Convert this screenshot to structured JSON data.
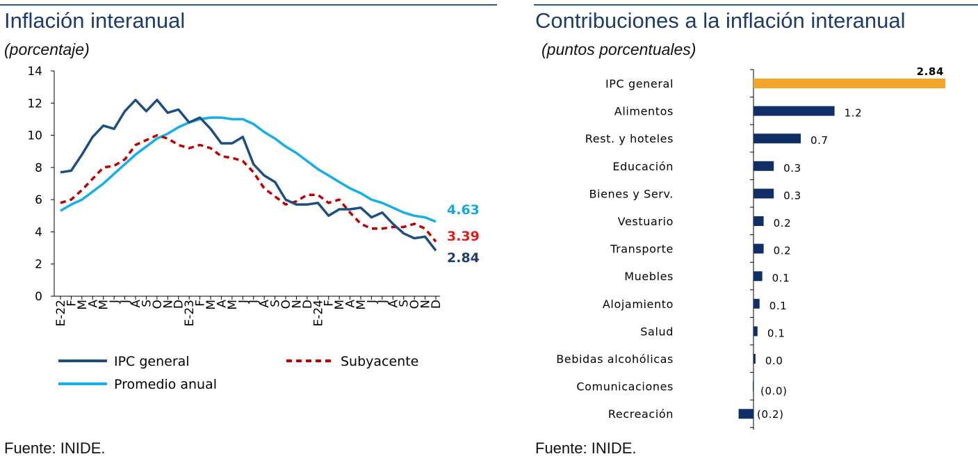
{
  "left": {
    "title": "Inflación interanual",
    "subtitle": "(porcentaje)",
    "source": "Fuente: INIDE."
  },
  "right": {
    "title": "Contribuciones a la inflación interanual",
    "subtitle": "(puntos porcentuales)",
    "source": "Fuente: INIDE."
  },
  "colors": {
    "ipc": "#1c4e80",
    "subyacente": "#c00000",
    "promedio": "#14aee8",
    "label_ipc": "#1f3f6e",
    "label_sub": "#e31b1b",
    "label_prom": "#12a9e0",
    "bar_highlight": "#f0a72a",
    "bar": "#0f2f66"
  },
  "chart_data": [
    {
      "type": "line",
      "title": "Inflación interanual",
      "subtitle": "(porcentaje)",
      "ylim": [
        0,
        14
      ],
      "yticks": [
        0,
        2,
        4,
        6,
        8,
        10,
        12,
        14
      ],
      "grid": false,
      "legend_position": "bottom",
      "x": [
        "E-22",
        "F",
        "M",
        "A",
        "M",
        "J",
        "J",
        "A",
        "S",
        "O",
        "N",
        "D",
        "E-23",
        "F",
        "M",
        "A",
        "M",
        "J",
        "J",
        "A",
        "S",
        "O",
        "N",
        "D",
        "E-24",
        "F",
        "M",
        "A",
        "M",
        "J",
        "J",
        "A",
        "S",
        "O",
        "N",
        "D"
      ],
      "series": [
        {
          "name": "IPC general",
          "style": "solid",
          "values": [
            7.7,
            7.8,
            8.8,
            9.9,
            10.6,
            10.4,
            11.5,
            12.2,
            11.5,
            12.2,
            11.4,
            11.6,
            10.8,
            11.1,
            10.4,
            9.5,
            9.5,
            9.9,
            8.2,
            7.5,
            7.1,
            6.0,
            5.7,
            5.7,
            5.8,
            5.0,
            5.4,
            5.4,
            5.5,
            4.9,
            5.2,
            4.5,
            3.9,
            3.6,
            3.7,
            2.84
          ],
          "end_label": "2.84"
        },
        {
          "name": "Subyacente",
          "style": "dashed",
          "values": [
            5.8,
            6.0,
            6.6,
            7.3,
            8.0,
            8.1,
            8.5,
            9.4,
            9.7,
            10.0,
            9.8,
            9.4,
            9.2,
            9.4,
            9.2,
            8.7,
            8.6,
            8.4,
            7.7,
            6.7,
            6.2,
            5.7,
            5.9,
            6.3,
            6.3,
            5.8,
            6.0,
            5.2,
            4.5,
            4.2,
            4.2,
            4.3,
            4.3,
            4.5,
            4.2,
            3.39
          ],
          "end_label": "3.39"
        },
        {
          "name": "Promedio anual",
          "style": "solid",
          "values": [
            5.3,
            5.7,
            6.0,
            6.5,
            7.0,
            7.6,
            8.2,
            8.8,
            9.3,
            9.8,
            10.1,
            10.5,
            10.8,
            11.0,
            11.1,
            11.1,
            11.0,
            11.0,
            10.7,
            10.2,
            9.8,
            9.3,
            8.9,
            8.4,
            7.9,
            7.5,
            7.1,
            6.7,
            6.4,
            6.0,
            5.8,
            5.5,
            5.2,
            5.0,
            4.9,
            4.63
          ],
          "end_label": "4.63"
        }
      ]
    },
    {
      "type": "bar",
      "orientation": "horizontal",
      "title": "Contribuciones a la inflación interanual",
      "subtitle": "(puntos porcentuales)",
      "grid": false,
      "xlim": [
        -0.22,
        2.84
      ],
      "categories": [
        "IPC general",
        "Alimentos",
        "Rest. y hoteles",
        "Educación",
        "Bienes y Serv.",
        "Vestuario",
        "Transporte",
        "Muebles",
        "Alojamiento",
        "Salud",
        "Bebidas alcohólicas",
        "Comunicaciones",
        "Recreación"
      ],
      "values": [
        2.84,
        1.2,
        0.7,
        0.3,
        0.3,
        0.15,
        0.15,
        0.13,
        0.09,
        0.06,
        0.03,
        -0.01,
        -0.22
      ],
      "labels": [
        "2.84",
        "1.2",
        "0.7",
        "0.3",
        "0.3",
        "0.2",
        "0.2",
        "0.1",
        "0.1",
        "0.1",
        "0.0",
        "(0.0)",
        "(0.2)"
      ]
    }
  ]
}
